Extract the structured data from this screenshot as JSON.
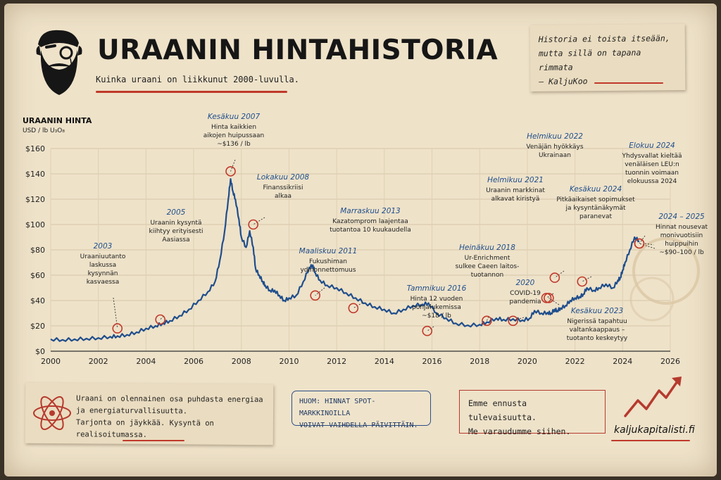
{
  "header": {
    "title": "URAANIN HINTAHISTORIA",
    "subtitle": "Kuinka uraani on liikkunut 2000-luvulla."
  },
  "quote": {
    "line1": "Historia ei toista itseään,",
    "line2": "mutta sillä on tapana rimmata",
    "author": "– KaljuKoo"
  },
  "axis": {
    "title": "URAANIN HINTA",
    "unit": "USD / lb U₃O₈"
  },
  "info_box": {
    "line1": "Uraani on olennainen osa puhdasta energiaa",
    "line2": "ja energiaturvallisuutta.",
    "line3": "Tarjonta on jäykkää. Kysyntä on realisoitumassa."
  },
  "notice": {
    "line1": "HUOM: HINNAT SPOT-MARKKINOILLA",
    "line2": "VOIVAT VAIHDELLA PÄIVITTÄIN."
  },
  "forecast": {
    "line1": "Emme ennusta tulevaisuutta.",
    "line2": "Me varaudumme siihen."
  },
  "footer": {
    "site": "kaljukapitalisti.fi"
  },
  "colors": {
    "line": "#1f4e8c",
    "accent": "#c0392b",
    "ink": "#161616",
    "paper": "#eee2c9",
    "annotation_title": "#1f4e8c"
  },
  "chart_data": {
    "type": "line",
    "ylabel": "URAANIN HINTA",
    "yunit": "USD / lb U₃O₈",
    "xlim": [
      2000,
      2026
    ],
    "ylim": [
      0,
      160
    ],
    "xticks": [
      2000,
      2002,
      2004,
      2006,
      2008,
      2010,
      2012,
      2014,
      2016,
      2018,
      2020,
      2022,
      2024,
      2026
    ],
    "yticks": [
      0,
      20,
      40,
      60,
      80,
      100,
      120,
      140,
      160
    ],
    "ytick_labels": [
      "$0",
      "$20",
      "$40",
      "$60",
      "$80",
      "$100",
      "$120",
      "$140",
      "$160"
    ],
    "grid": true,
    "x": [
      2000.0,
      2000.5,
      2001.0,
      2001.5,
      2002.0,
      2002.5,
      2002.8,
      2003.2,
      2003.6,
      2004.0,
      2004.4,
      2004.7,
      2005.0,
      2005.4,
      2005.8,
      2006.2,
      2006.6,
      2006.9,
      2007.1,
      2007.3,
      2007.45,
      2007.55,
      2007.65,
      2007.75,
      2007.9,
      2008.0,
      2008.2,
      2008.35,
      2008.5,
      2008.6,
      2008.75,
      2008.9,
      2009.0,
      2009.2,
      2009.4,
      2009.6,
      2009.8,
      2010.0,
      2010.3,
      2010.6,
      2010.85,
      2011.0,
      2011.1,
      2011.3,
      2011.6,
      2012.0,
      2012.4,
      2012.8,
      2013.2,
      2013.6,
      2014.0,
      2014.4,
      2014.8,
      2015.2,
      2015.6,
      2015.85,
      2016.2,
      2016.6,
      2017.0,
      2017.5,
      2018.0,
      2018.3,
      2018.7,
      2019.0,
      2019.4,
      2019.8,
      2020.1,
      2020.3,
      2020.6,
      2020.85,
      2021.0,
      2021.15,
      2021.25,
      2021.4,
      2021.6,
      2021.8,
      2022.0,
      2022.2,
      2022.35,
      2022.5,
      2022.8,
      2023.0,
      2023.3,
      2023.6,
      2023.8,
      2023.9,
      2024.0,
      2024.1,
      2024.3,
      2024.5,
      2024.7
    ],
    "y": [
      9.5,
      9.0,
      9.5,
      10.0,
      10.5,
      11.5,
      12.0,
      13.0,
      15.0,
      18.0,
      20.0,
      22.0,
      24.0,
      28.0,
      33.0,
      40.0,
      47.0,
      55.0,
      72.0,
      95.0,
      120.0,
      136.0,
      126.0,
      120.0,
      104.0,
      90.0,
      82.0,
      95.0,
      82.0,
      65.0,
      60.0,
      55.0,
      52.0,
      48.0,
      48.0,
      44.0,
      40.0,
      42.0,
      44.0,
      55.0,
      66.0,
      68.0,
      62.0,
      56.0,
      52.0,
      50.0,
      46.0,
      42.0,
      38.0,
      35.0,
      33.0,
      30.0,
      33.0,
      36.0,
      37.0,
      38.0,
      30.0,
      26.0,
      22.0,
      20.5,
      21.0,
      23.0,
      26.0,
      25.0,
      25.5,
      24.5,
      26.0,
      32.0,
      30.0,
      30.5,
      30.0,
      33.0,
      32.0,
      34.0,
      36.0,
      40.0,
      42.0,
      43.0,
      45.0,
      50.0,
      48.0,
      50.0,
      53.0,
      50.0,
      56.0,
      58.0,
      64.0,
      70.0,
      80.0,
      90.0,
      87.0
    ],
    "annotations": [
      {
        "year": 2003,
        "date": 2002.8,
        "value": 18,
        "title": "2003",
        "text": [
          "Uraaniuutanto",
          "laskussa",
          "kysynnän",
          "kasvaessa"
        ]
      },
      {
        "year": 2005,
        "date": 2004.6,
        "value": 25,
        "title": "2005",
        "text": [
          "Uraanin kysyntä",
          "kiihtyy erityisesti",
          "Aasiassa"
        ]
      },
      {
        "year": 2007,
        "date": 2007.55,
        "value": 142,
        "title": "Kesäkuu 2007",
        "text": [
          "Hinta kaikkien",
          "aikojen huipussaan",
          "~$136 / lb"
        ]
      },
      {
        "year": 2008,
        "date": 2008.5,
        "value": 100,
        "title": "Lokakuu 2008",
        "text": [
          "Finanssikriisi",
          "alkaa"
        ]
      },
      {
        "year": 2011,
        "date": 2011.1,
        "value": 44,
        "title": "Maaliskuu 2011",
        "text": [
          "Fukushiman",
          "ydinonnettomuus"
        ]
      },
      {
        "year": 2013,
        "date": 2012.7,
        "value": 34,
        "title": "Marraskuu 2013",
        "text": [
          "Kazatomprom laajentaa",
          "tuotantoa 10 kuukaudella"
        ]
      },
      {
        "year": 2016,
        "date": 2015.8,
        "value": 16,
        "title": "Tammikuu 2016",
        "text": [
          "Hinta 12 vuoden",
          "pohjalukemissa",
          "~$18 / lb"
        ]
      },
      {
        "year": 2018,
        "date": 2018.3,
        "value": 24,
        "title": "Heinäkuu 2018",
        "text": [
          "Ur-Enrichment",
          "sulkee Caeen laitos-",
          "tuotannon"
        ]
      },
      {
        "year": 2020,
        "date": 2019.4,
        "value": 24,
        "title": "2020",
        "text": [
          "COVID-19",
          "pandemia"
        ]
      },
      {
        "year": 2021,
        "date": 2020.8,
        "value": 42,
        "title": "Helmikuu 2021",
        "text": [
          "Uraanin markkinat",
          "alkavat kiristyä"
        ]
      },
      {
        "year": 2022,
        "date": 2021.15,
        "value": 58,
        "title": "Helmikuu 2022",
        "text": [
          "Venäjän hyökkäys",
          "Ukrainaan"
        ]
      },
      {
        "year": 2023,
        "date": 2020.9,
        "value": 42,
        "title": "Kesäkuu 2023",
        "text": [
          "Nigerissä tapahtuu",
          "valtankaappaus –",
          "tuotanto keskeytyy"
        ]
      },
      {
        "year": 2024,
        "date": 2022.3,
        "value": 55,
        "title": "Kesäkuu 2024",
        "text": [
          "Pitkäaikaiset sopimukset",
          "ja kysyntänäkymät",
          "paranevat"
        ]
      },
      {
        "year": 2024.5,
        "date": 2024.7,
        "value": 85,
        "title": "Elokuu 2024",
        "text": [
          "Yhdysvallat kieltää",
          "venäläisen LEU:n",
          "tuonnin voimaan",
          "elokuussa 2024"
        ]
      },
      {
        "year": 2025,
        "date": 2024.7,
        "value": 85,
        "title": "2024 – 2025",
        "text": [
          "Hinnat nousevat",
          "monivuotisiin",
          "huippuihin",
          "~$90–100 / lb"
        ]
      }
    ]
  }
}
